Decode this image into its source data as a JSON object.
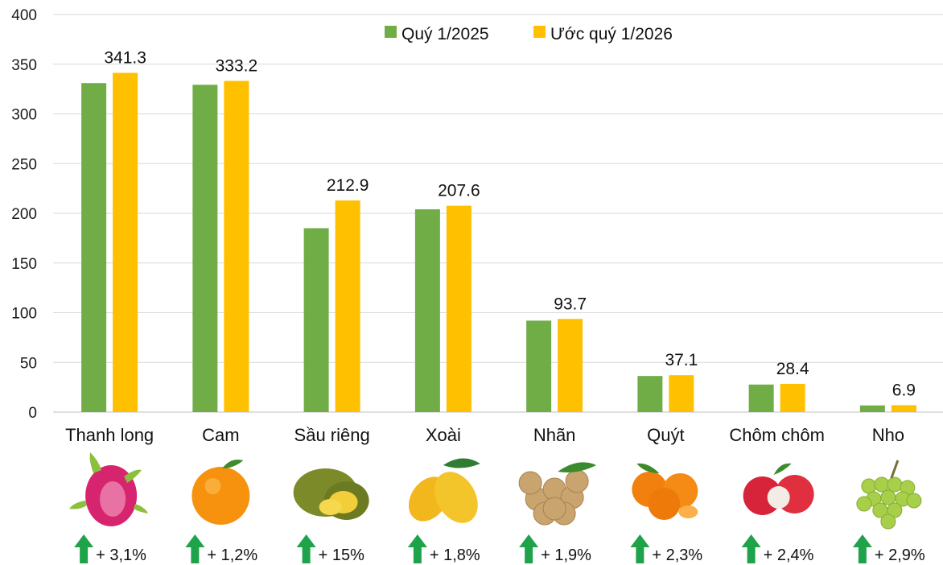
{
  "chart_data": {
    "type": "bar",
    "title": "",
    "xlabel": "",
    "ylabel": "",
    "ylim": [
      0,
      400
    ],
    "yticks": [
      0,
      50,
      100,
      150,
      200,
      250,
      300,
      350,
      400
    ],
    "grid": true,
    "legend_position": "top-right",
    "categories": [
      "Thanh long",
      "Cam",
      "Sầu riêng",
      "Xoài",
      "Nhãn",
      "Quýt",
      "Chôm chôm",
      "Nho"
    ],
    "series": [
      {
        "name": "Quý 1/2025",
        "color": "#70AD47",
        "values": [
          331,
          329.3,
          185,
          204,
          92,
          36.3,
          27.7,
          6.7
        ]
      },
      {
        "name": "Ước quý 1/2026",
        "color": "#FFC000",
        "values": [
          341.3,
          333.2,
          212.9,
          207.6,
          93.7,
          37.1,
          28.4,
          6.9
        ]
      }
    ],
    "data_labels": [
      "341.3",
      "333.2",
      "212.9",
      "207.6",
      "93.7",
      "37.1",
      "28.4",
      "6.9"
    ],
    "growth_labels": [
      "+ 3,1%",
      "+ 1,2%",
      "+ 15%",
      "+ 1,8%",
      "+ 1,9%",
      "+ 2,3%",
      "+ 2,4%",
      "+ 2,9%"
    ],
    "fruit_icons": [
      "dragon-fruit-icon",
      "orange-icon",
      "durian-icon",
      "mango-icon",
      "longan-icon",
      "tangerine-icon",
      "rambutan-icon",
      "grape-icon"
    ],
    "arrow_color": "#1FA34A"
  }
}
